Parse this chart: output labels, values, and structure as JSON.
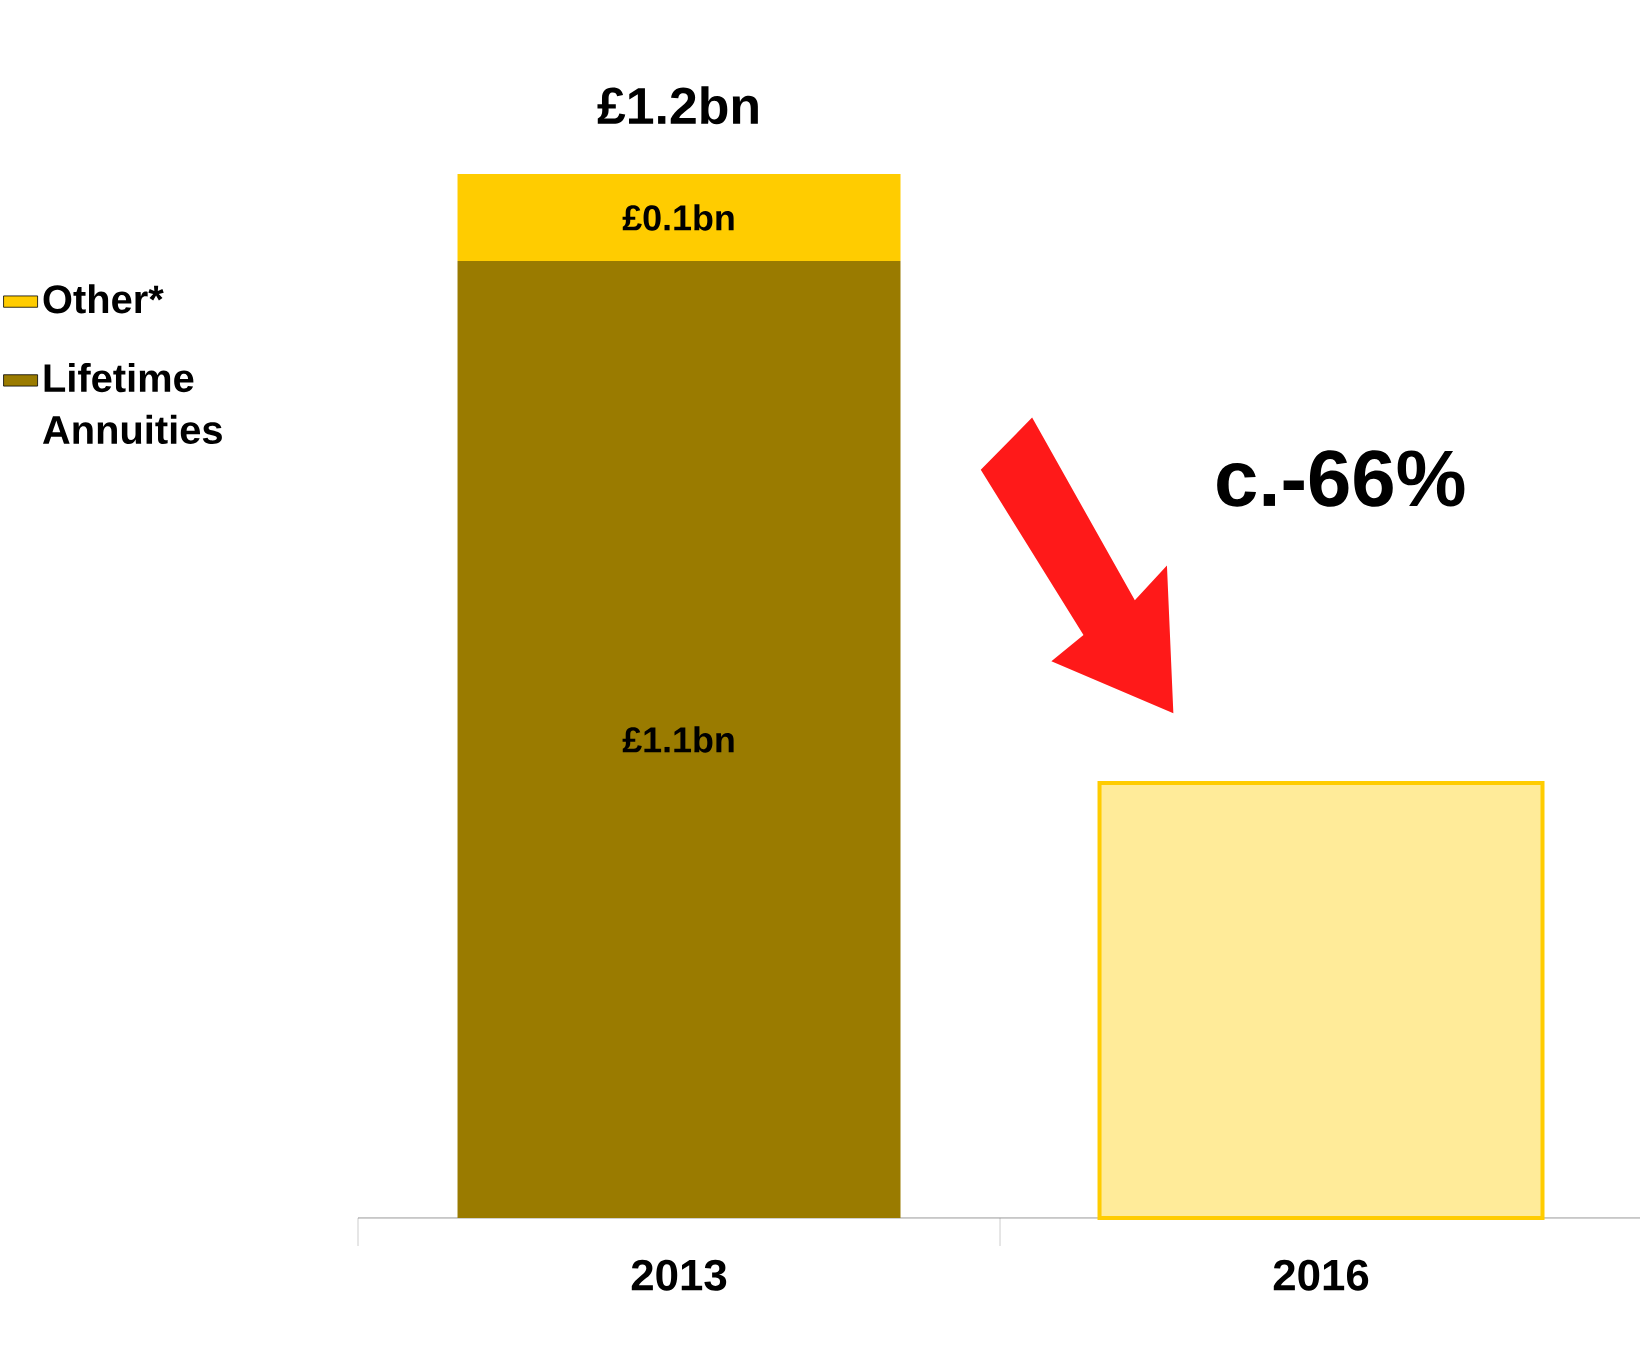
{
  "chart_data": {
    "type": "bar",
    "stacked": true,
    "categories": [
      "2013",
      "2016"
    ],
    "series": [
      {
        "name": "Lifetime Annuities",
        "color": "#9a7b00",
        "values": [
          1.1,
          null
        ],
        "value_labels": [
          "£1.1bn",
          null
        ]
      },
      {
        "name": "Other*",
        "color": "#ffcc00",
        "values": [
          0.1,
          null
        ],
        "value_labels": [
          "£0.1bn",
          null
        ]
      },
      {
        "color": "#ffcc00",
        "values": [
          null,
          0.5
        ]
      }
    ],
    "totals": [
      "£1.2bn",
      null
    ],
    "annotations": [
      "c.-66%"
    ],
    "legend": "left"
  }
}
